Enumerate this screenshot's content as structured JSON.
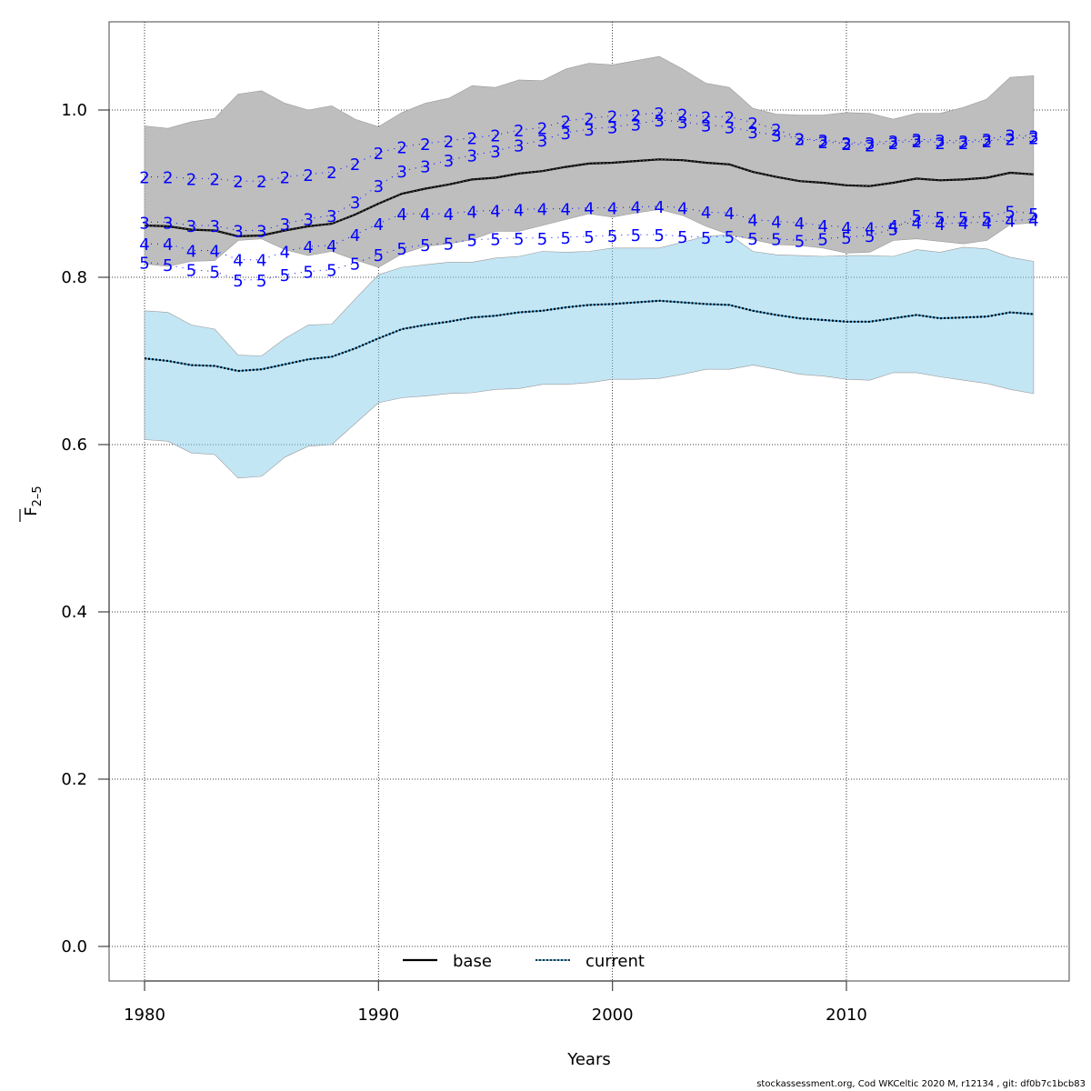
{
  "chart_data": {
    "type": "line",
    "title": "",
    "xlabel": "Years",
    "ylabel": "F̄ 2-5",
    "ylabel_main": "F",
    "ylabel_sub": "2–5",
    "xlim": [
      1978.5,
      2019.7
    ],
    "ylim": [
      -0.04,
      1.105
    ],
    "x_ticks": [
      1980,
      1990,
      2000,
      2010
    ],
    "y_ticks": [
      0.0,
      0.2,
      0.4,
      0.6,
      0.8,
      1.0
    ],
    "y_tick_labels": [
      "0.0",
      "0.2",
      "0.4",
      "0.6",
      "0.8",
      "1.0"
    ],
    "grid": true,
    "legend_position": "bottom-center",
    "x": [
      1980,
      1981,
      1982,
      1983,
      1984,
      1985,
      1986,
      1987,
      1988,
      1989,
      1990,
      1991,
      1992,
      1993,
      1994,
      1995,
      1996,
      1997,
      1998,
      1999,
      2000,
      2001,
      2002,
      2003,
      2004,
      2005,
      2006,
      2007,
      2008,
      2009,
      2010,
      2011,
      2012,
      2013,
      2014,
      2015,
      2016,
      2017,
      2018
    ],
    "series": [
      {
        "name": "base",
        "style": "solid",
        "color": "#000000",
        "band_color": "#bebebe",
        "values": [
          0.862,
          0.861,
          0.857,
          0.856,
          0.849,
          0.85,
          0.856,
          0.861,
          0.864,
          0.875,
          0.888,
          0.9,
          0.906,
          0.911,
          0.917,
          0.919,
          0.924,
          0.927,
          0.932,
          0.936,
          0.937,
          0.939,
          0.941,
          0.94,
          0.937,
          0.935,
          0.926,
          0.92,
          0.915,
          0.913,
          0.91,
          0.909,
          0.913,
          0.918,
          0.916,
          0.917,
          0.919,
          0.925,
          0.923
        ],
        "upper": [
          0.981,
          0.978,
          0.986,
          0.99,
          1.019,
          1.023,
          1.008,
          1.0,
          1.005,
          0.989,
          0.98,
          0.997,
          1.008,
          1.014,
          1.029,
          1.027,
          1.036,
          1.035,
          1.049,
          1.056,
          1.054,
          1.059,
          1.064,
          1.049,
          1.032,
          1.027,
          1.002,
          0.995,
          0.994,
          0.994,
          0.997,
          0.996,
          0.989,
          0.996,
          0.996,
          1.003,
          1.013,
          1.039,
          1.041
        ],
        "lower": [
          0.816,
          0.813,
          0.819,
          0.82,
          0.844,
          0.846,
          0.833,
          0.826,
          0.831,
          0.821,
          0.812,
          0.828,
          0.837,
          0.84,
          0.845,
          0.855,
          0.855,
          0.862,
          0.869,
          0.876,
          0.872,
          0.877,
          0.881,
          0.874,
          0.861,
          0.851,
          0.845,
          0.839,
          0.838,
          0.835,
          0.829,
          0.83,
          0.844,
          0.846,
          0.843,
          0.84,
          0.844,
          0.863,
          0.865
        ]
      },
      {
        "name": "current",
        "style": "dotted",
        "color": "#000000",
        "band_color": "#87ceeb",
        "values": [
          0.703,
          0.7,
          0.695,
          0.694,
          0.688,
          0.69,
          0.696,
          0.702,
          0.705,
          0.715,
          0.727,
          0.738,
          0.743,
          0.747,
          0.752,
          0.754,
          0.758,
          0.76,
          0.764,
          0.767,
          0.768,
          0.77,
          0.772,
          0.77,
          0.768,
          0.767,
          0.76,
          0.755,
          0.751,
          0.749,
          0.747,
          0.747,
          0.751,
          0.755,
          0.751,
          0.752,
          0.753,
          0.758,
          0.756
        ],
        "upper": [
          0.76,
          0.758,
          0.743,
          0.738,
          0.707,
          0.706,
          0.727,
          0.743,
          0.744,
          0.774,
          0.803,
          0.812,
          0.815,
          0.818,
          0.818,
          0.823,
          0.825,
          0.831,
          0.83,
          0.831,
          0.835,
          0.835,
          0.835,
          0.842,
          0.849,
          0.851,
          0.831,
          0.827,
          0.826,
          0.825,
          0.826,
          0.826,
          0.825,
          0.833,
          0.83,
          0.836,
          0.834,
          0.824,
          0.819
        ],
        "lower": [
          0.606,
          0.604,
          0.59,
          0.588,
          0.56,
          0.562,
          0.585,
          0.598,
          0.6,
          0.625,
          0.65,
          0.656,
          0.658,
          0.661,
          0.662,
          0.666,
          0.667,
          0.672,
          0.672,
          0.674,
          0.678,
          0.678,
          0.679,
          0.684,
          0.69,
          0.69,
          0.695,
          0.69,
          0.684,
          0.682,
          0.678,
          0.677,
          0.686,
          0.686,
          0.681,
          0.677,
          0.673,
          0.666,
          0.661
        ]
      }
    ],
    "age_series": [
      {
        "label": "2",
        "values": [
          0.92,
          0.92,
          0.918,
          0.918,
          0.915,
          0.915,
          0.92,
          0.923,
          0.926,
          0.936,
          0.949,
          0.956,
          0.96,
          0.963,
          0.967,
          0.97,
          0.976,
          0.979,
          0.987,
          0.99,
          0.993,
          0.994,
          0.997,
          0.995,
          0.992,
          0.992,
          0.985,
          0.977,
          0.966,
          0.962,
          0.96,
          0.958,
          0.961,
          0.963,
          0.961,
          0.961,
          0.963,
          0.966,
          0.967
        ]
      },
      {
        "label": "3",
        "values": [
          0.866,
          0.866,
          0.862,
          0.862,
          0.856,
          0.856,
          0.864,
          0.87,
          0.874,
          0.89,
          0.91,
          0.927,
          0.933,
          0.94,
          0.946,
          0.951,
          0.958,
          0.964,
          0.973,
          0.977,
          0.98,
          0.983,
          0.988,
          0.986,
          0.982,
          0.98,
          0.974,
          0.97,
          0.966,
          0.964,
          0.961,
          0.961,
          0.963,
          0.965,
          0.964,
          0.963,
          0.965,
          0.97,
          0.969
        ]
      },
      {
        "label": "4",
        "values": [
          0.84,
          0.84,
          0.832,
          0.832,
          0.821,
          0.821,
          0.831,
          0.837,
          0.838,
          0.851,
          0.864,
          0.876,
          0.876,
          0.876,
          0.879,
          0.88,
          0.881,
          0.882,
          0.882,
          0.883,
          0.883,
          0.884,
          0.885,
          0.883,
          0.878,
          0.877,
          0.869,
          0.867,
          0.865,
          0.862,
          0.86,
          0.859,
          0.862,
          0.866,
          0.864,
          0.865,
          0.866,
          0.868,
          0.869
        ]
      },
      {
        "label": "5",
        "values": [
          0.818,
          0.815,
          0.809,
          0.807,
          0.797,
          0.797,
          0.803,
          0.807,
          0.809,
          0.817,
          0.827,
          0.835,
          0.839,
          0.841,
          0.845,
          0.846,
          0.847,
          0.847,
          0.848,
          0.849,
          0.85,
          0.851,
          0.851,
          0.849,
          0.848,
          0.849,
          0.847,
          0.846,
          0.844,
          0.846,
          0.848,
          0.85,
          0.858,
          0.874,
          0.872,
          0.872,
          0.872,
          0.879,
          0.876
        ]
      }
    ],
    "legend": [
      {
        "label": "base",
        "style": "solid"
      },
      {
        "label": "current",
        "style": "dotted"
      }
    ]
  },
  "footer": "stockassessment.org, Cod WKCeltic 2020 M, r12134 , git: df0b7c1bcb83"
}
